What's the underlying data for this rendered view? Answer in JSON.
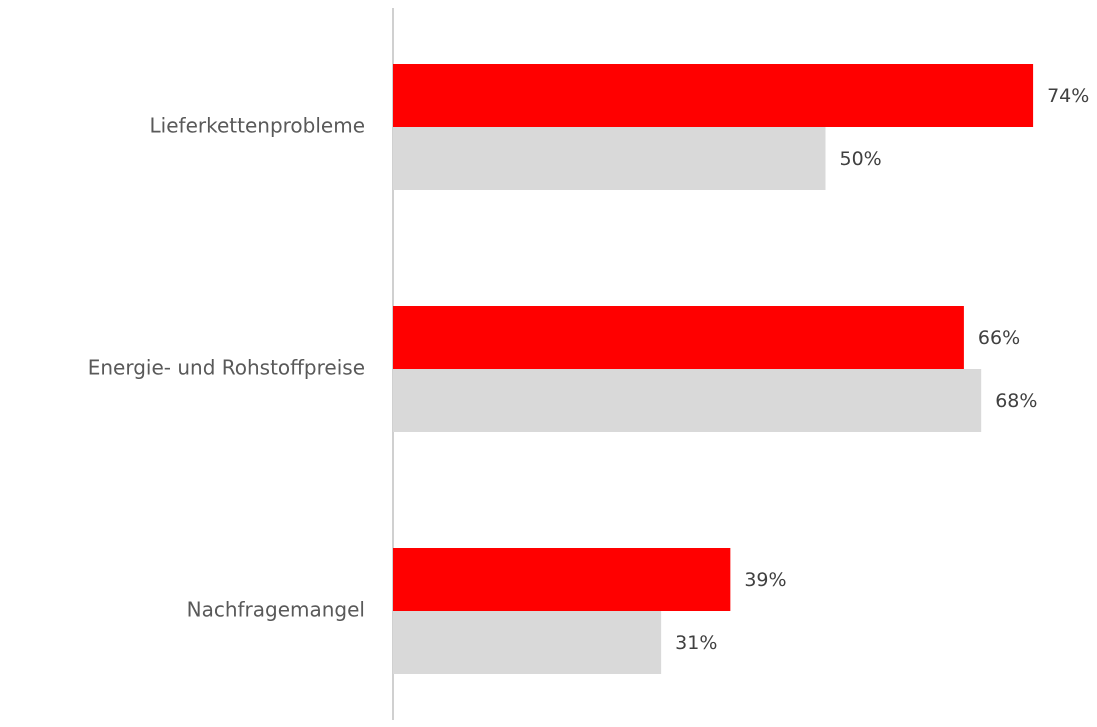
{
  "chart_data": {
    "type": "bar",
    "orientation": "horizontal",
    "categories": [
      "Lieferkettenprobleme",
      "Energie- und Rohstoffpreise",
      "Nachfragemangel"
    ],
    "series": [
      {
        "color": "#ff0000",
        "values": [
          74,
          66,
          39
        ],
        "value_labels": [
          "74%",
          "66%",
          "39%"
        ]
      },
      {
        "color": "#d9d9d9",
        "values": [
          50,
          68,
          31
        ],
        "value_labels": [
          "50%",
          "68%",
          "31%"
        ]
      }
    ]
  }
}
